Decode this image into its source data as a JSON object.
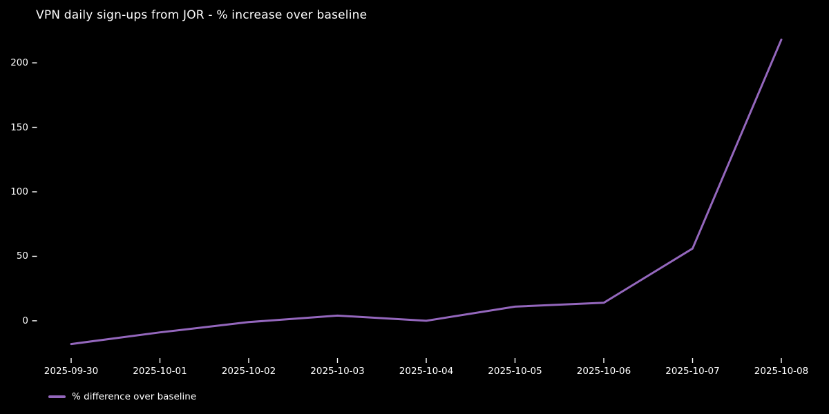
{
  "window": {
    "background": "#000000",
    "text_color": "#ffffff",
    "tick_color": "#ffffff"
  },
  "chart_data": {
    "type": "line",
    "title": "VPN daily sign-ups from JOR - % increase over baseline",
    "x": [
      "2025-09-30",
      "2025-10-01",
      "2025-10-02",
      "2025-10-03",
      "2025-10-04",
      "2025-10-05",
      "2025-10-06",
      "2025-10-07",
      "2025-10-08"
    ],
    "series": [
      {
        "name": "% difference over baseline",
        "color": "#9467bd",
        "line_width": 3,
        "values": [
          -18,
          -9,
          -1,
          4,
          0,
          11,
          14,
          56,
          218
        ]
      }
    ],
    "xlabel": "",
    "ylabel": "",
    "yticks": [
      0,
      50,
      100,
      150,
      200
    ],
    "ylim": [
      -30,
      230
    ],
    "grid": false,
    "legend": {
      "position": "lower-left",
      "entries": [
        "% difference over baseline"
      ]
    }
  }
}
